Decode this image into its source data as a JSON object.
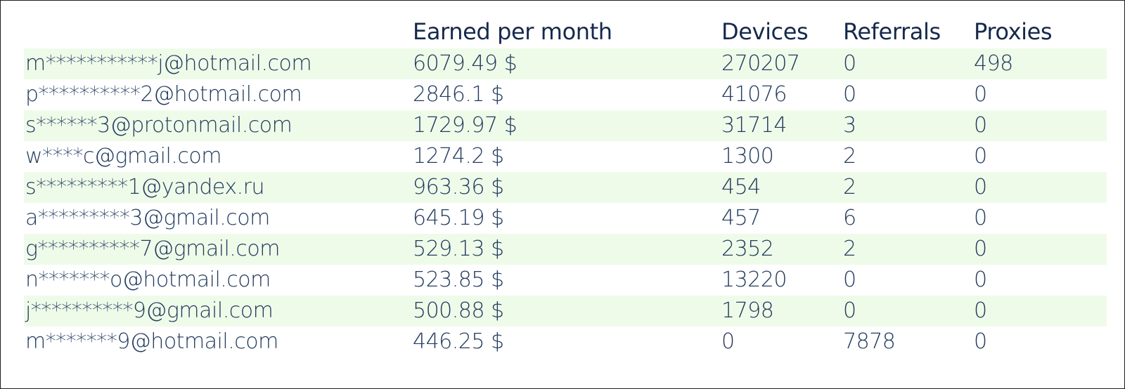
{
  "columns": {
    "email": "",
    "earned": "Earned per month",
    "devices": "Devices",
    "referrals": "Referrals",
    "proxies": "Proxies"
  },
  "rows": [
    {
      "email": "m***********j@hotmail.com",
      "earned": "6079.49 $",
      "devices": "270207",
      "referrals": "0",
      "proxies": "498"
    },
    {
      "email": "p**********2@hotmail.com",
      "earned": "2846.1 $",
      "devices": "41076",
      "referrals": "0",
      "proxies": "0"
    },
    {
      "email": "s******3@protonmail.com",
      "earned": "1729.97 $",
      "devices": "31714",
      "referrals": "3",
      "proxies": "0"
    },
    {
      "email": "w****c@gmail.com",
      "earned": "1274.2 $",
      "devices": "1300",
      "referrals": "2",
      "proxies": "0"
    },
    {
      "email": "s*********1@yandex.ru",
      "earned": "963.36 $",
      "devices": "454",
      "referrals": "2",
      "proxies": "0"
    },
    {
      "email": "a*********3@gmail.com",
      "earned": "645.19 $",
      "devices": "457",
      "referrals": "6",
      "proxies": "0"
    },
    {
      "email": "g**********7@gmail.com",
      "earned": "529.13 $",
      "devices": "2352",
      "referrals": "2",
      "proxies": "0"
    },
    {
      "email": "n*******o@hotmail.com",
      "earned": "523.85 $",
      "devices": "13220",
      "referrals": "0",
      "proxies": "0"
    },
    {
      "email": "j**********9@gmail.com",
      "earned": "500.88 $",
      "devices": "1798",
      "referrals": "0",
      "proxies": "0"
    },
    {
      "email": "m*******9@hotmail.com",
      "earned": "446.25 $",
      "devices": "0",
      "referrals": "7878",
      "proxies": "0"
    }
  ],
  "colors": {
    "stripe": "#effbe9",
    "text": "#223b5e",
    "header_text": "#15294c",
    "border": "#1e1e1e"
  }
}
